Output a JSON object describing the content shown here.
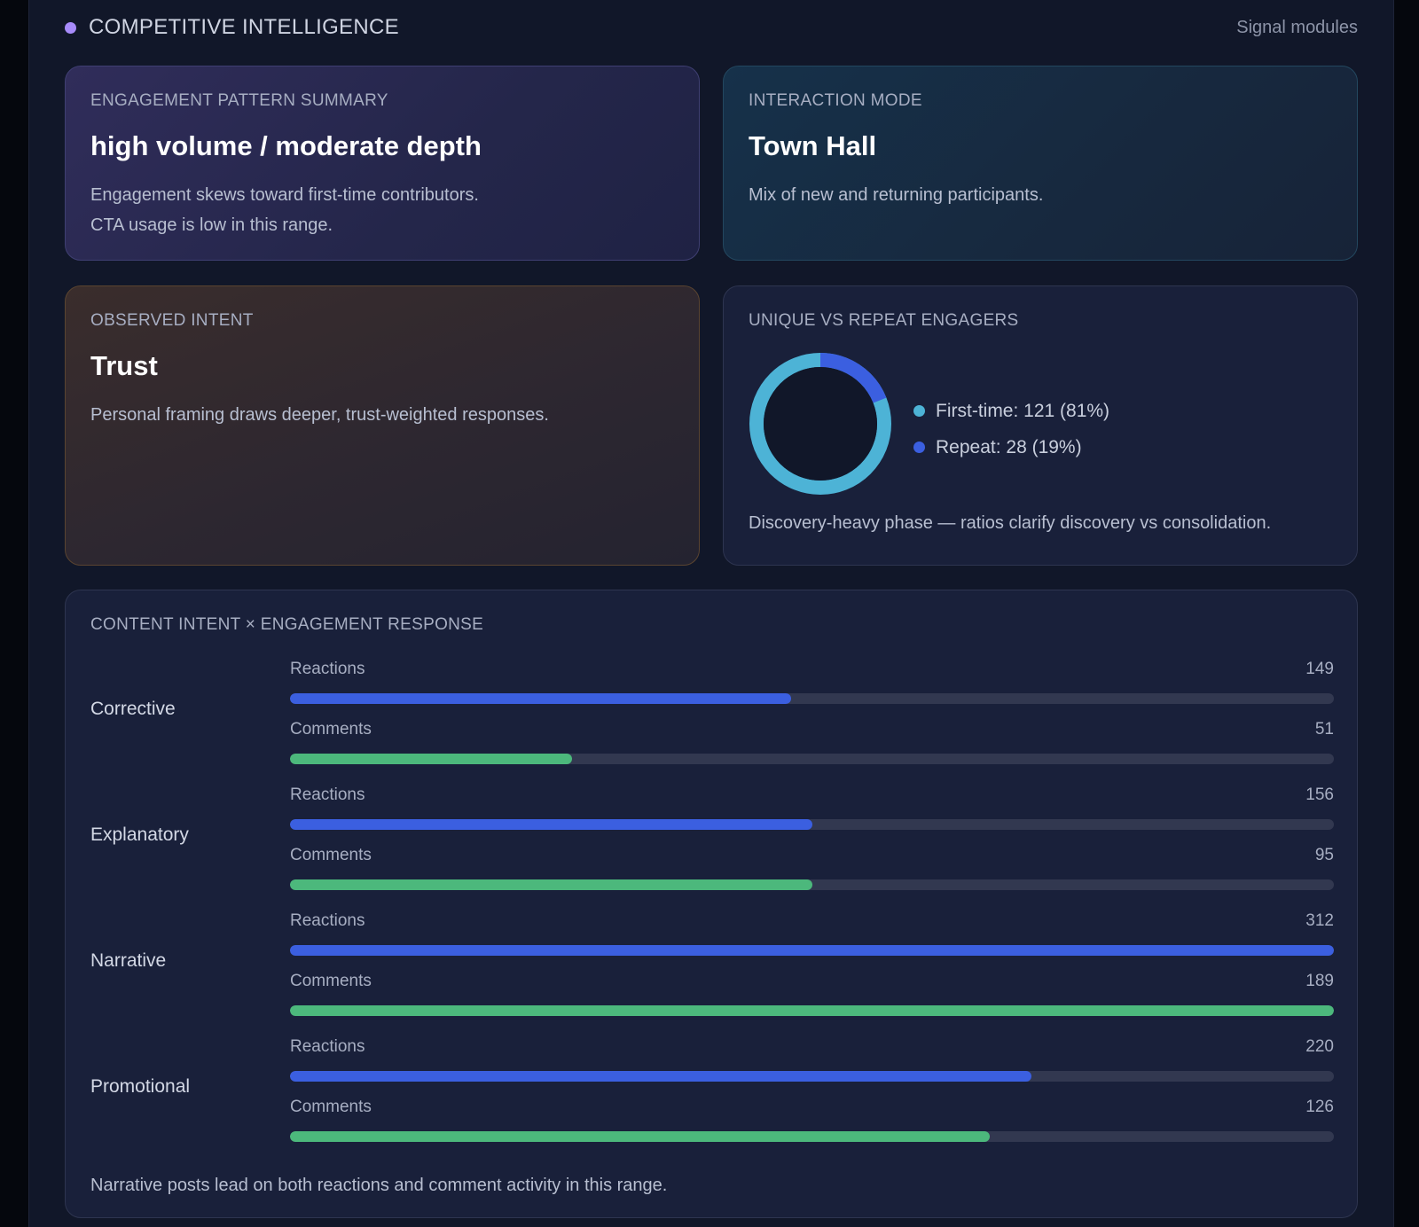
{
  "header": {
    "title": "COMPETITIVE INTELLIGENCE",
    "right_label": "Signal modules",
    "dot_color": "#a78bfa"
  },
  "pattern_card": {
    "label": "ENGAGEMENT PATTERN SUMMARY",
    "title": "high volume / moderate depth",
    "line1": "Engagement skews toward first-time contributors.",
    "line2": "CTA usage is low in this range."
  },
  "mode_card": {
    "label": "INTERACTION MODE",
    "title": "Town Hall",
    "body": "Mix of new and returning participants."
  },
  "intent_card": {
    "label": "OBSERVED INTENT",
    "title": "Trust",
    "body": "Personal framing draws deeper, trust-weighted responses."
  },
  "engagers_card": {
    "label": "UNIQUE VS REPEAT ENGAGERS",
    "legend_first": "First-time: 121 (81%)",
    "legend_repeat": "Repeat: 28 (19%)",
    "note": "Discovery-heavy phase — ratios clarify discovery vs consolidation.",
    "first_time_fraction": 0.81,
    "repeat_fraction": 0.19,
    "first_time_color": "#4db3d6",
    "repeat_color": "#3b5fe0"
  },
  "content_card": {
    "label": "CONTENT INTENT × ENGAGEMENT RESPONSE",
    "note": "Narrative posts lead on both reactions and comment activity in this range.",
    "reactions_label": "Reactions",
    "comments_label": "Comments",
    "groups": [
      {
        "name": "Corrective",
        "reactions": "149",
        "comments": "51",
        "reactions_fill": 0.48,
        "comments_fill": 0.27
      },
      {
        "name": "Explanatory",
        "reactions": "156",
        "comments": "95",
        "reactions_fill": 0.5,
        "comments_fill": 0.5
      },
      {
        "name": "Narrative",
        "reactions": "312",
        "comments": "189",
        "reactions_fill": 1.0,
        "comments_fill": 1.0
      },
      {
        "name": "Promotional",
        "reactions": "220",
        "comments": "126",
        "reactions_fill": 0.71,
        "comments_fill": 0.67
      }
    ]
  }
}
